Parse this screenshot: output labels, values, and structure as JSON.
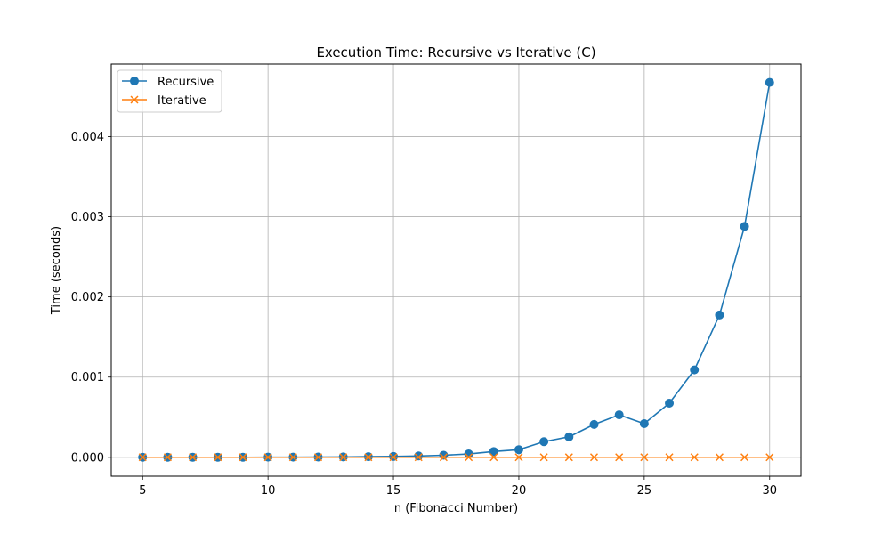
{
  "chart_data": {
    "type": "line",
    "title": "Execution Time: Recursive vs Iterative (C)",
    "xlabel": "n (Fibonacci Number)",
    "ylabel": "Time (seconds)",
    "x": [
      5,
      6,
      7,
      8,
      9,
      10,
      11,
      12,
      13,
      14,
      15,
      16,
      17,
      18,
      19,
      20,
      21,
      22,
      23,
      24,
      25,
      26,
      27,
      28,
      29,
      30
    ],
    "xlim": [
      3.75,
      31.25
    ],
    "ylim": [
      -0.000235,
      0.004904
    ],
    "xticks": [
      5,
      10,
      15,
      20,
      25,
      30
    ],
    "xtick_labels": [
      "5",
      "10",
      "15",
      "20",
      "25",
      "30"
    ],
    "yticks": [
      0,
      0.001,
      0.002,
      0.003,
      0.004
    ],
    "ytick_labels": [
      "0.000",
      "0.001",
      "0.002",
      "0.003",
      "0.004"
    ],
    "grid": true,
    "legend_position": "top-left",
    "series": [
      {
        "name": "Recursive",
        "color": "#1f77b4",
        "marker": "circle",
        "values": [
          1e-06,
          1e-06,
          1e-06,
          1e-06,
          1e-06,
          2e-06,
          2e-06,
          3e-06,
          5e-06,
          8e-06,
          1.1e-05,
          1.7e-05,
          2.6e-05,
          4.2e-05,
          7.2e-05,
          9.5e-05,
          0.000195,
          0.000255,
          0.00041,
          0.00053,
          0.00042,
          0.000675,
          0.00109,
          0.001775,
          0.00288,
          0.004675
        ]
      },
      {
        "name": "Iterative",
        "color": "#ff7f0e",
        "marker": "x",
        "values": [
          1e-06,
          1e-06,
          1e-06,
          1e-06,
          1e-06,
          1e-06,
          1e-06,
          1e-06,
          1e-06,
          1e-06,
          1e-06,
          1e-06,
          1e-06,
          1e-06,
          1e-06,
          1e-06,
          1e-06,
          1e-06,
          1e-06,
          1e-06,
          1e-06,
          1e-06,
          1e-06,
          1e-06,
          1e-06,
          1e-06
        ]
      }
    ]
  }
}
